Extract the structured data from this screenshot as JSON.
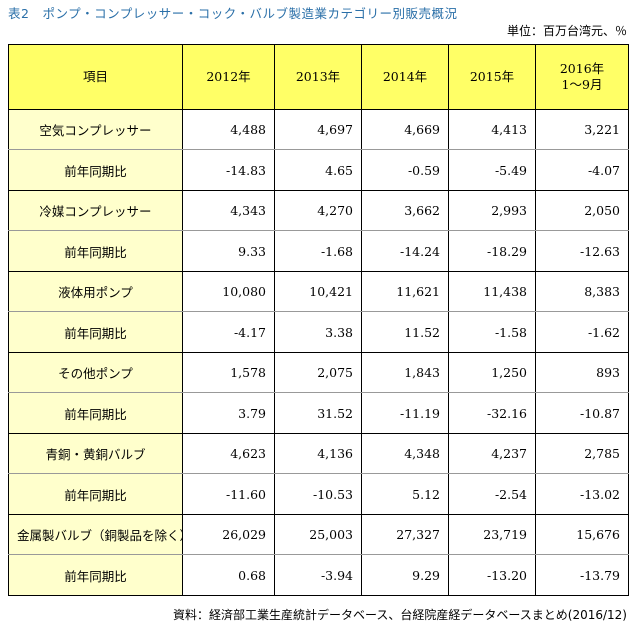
{
  "title": "表2　ポンプ・コンプレッサー・コック・バルブ製造業カテゴリー別販売概況",
  "unit": "単位：百万台湾元、％",
  "header": {
    "item": "項目",
    "years": [
      "2012年",
      "2013年",
      "2014年",
      "2015年"
    ],
    "last_line1": "2016年",
    "last_line2": "1〜9月"
  },
  "rows": [
    {
      "label": "空気コンプレッサー",
      "values": [
        "4,488",
        "4,697",
        "4,669",
        "4,413",
        "3,221"
      ]
    },
    {
      "label": "前年同期比",
      "values": [
        "-14.83",
        "4.65",
        "-0.59",
        "-5.49",
        "-4.07"
      ]
    },
    {
      "label": "冷媒コンプレッサー",
      "values": [
        "4,343",
        "4,270",
        "3,662",
        "2,993",
        "2,050"
      ]
    },
    {
      "label": "前年同期比",
      "values": [
        "9.33",
        "-1.68",
        "-14.24",
        "-18.29",
        "-12.63"
      ]
    },
    {
      "label": "液体用ポンプ",
      "values": [
        "10,080",
        "10,421",
        "11,621",
        "11,438",
        "8,383"
      ]
    },
    {
      "label": "前年同期比",
      "values": [
        "-4.17",
        "3.38",
        "11.52",
        "-1.58",
        "-1.62"
      ]
    },
    {
      "label": "その他ポンプ",
      "values": [
        "1,578",
        "2,075",
        "1,843",
        "1,250",
        "893"
      ]
    },
    {
      "label": "前年同期比",
      "values": [
        "3.79",
        "31.52",
        "-11.19",
        "-32.16",
        "-10.87"
      ]
    },
    {
      "label": "青銅・黄銅バルブ",
      "values": [
        "4,623",
        "4,136",
        "4,348",
        "4,237",
        "2,785"
      ]
    },
    {
      "label": "前年同期比",
      "values": [
        "-11.60",
        "-10.53",
        "5.12",
        "-2.54",
        "-13.02"
      ]
    },
    {
      "label": "金属製バルブ（銅製品を除く）",
      "values": [
        "26,029",
        "25,003",
        "27,327",
        "23,719",
        "15,676"
      ]
    },
    {
      "label": "前年同期比",
      "values": [
        "0.68",
        "-3.94",
        "9.29",
        "-13.20",
        "-13.79"
      ]
    }
  ],
  "source": "資料：経済部工業生産統計データベース、台経院産経データベースまとめ(2016/12)"
}
